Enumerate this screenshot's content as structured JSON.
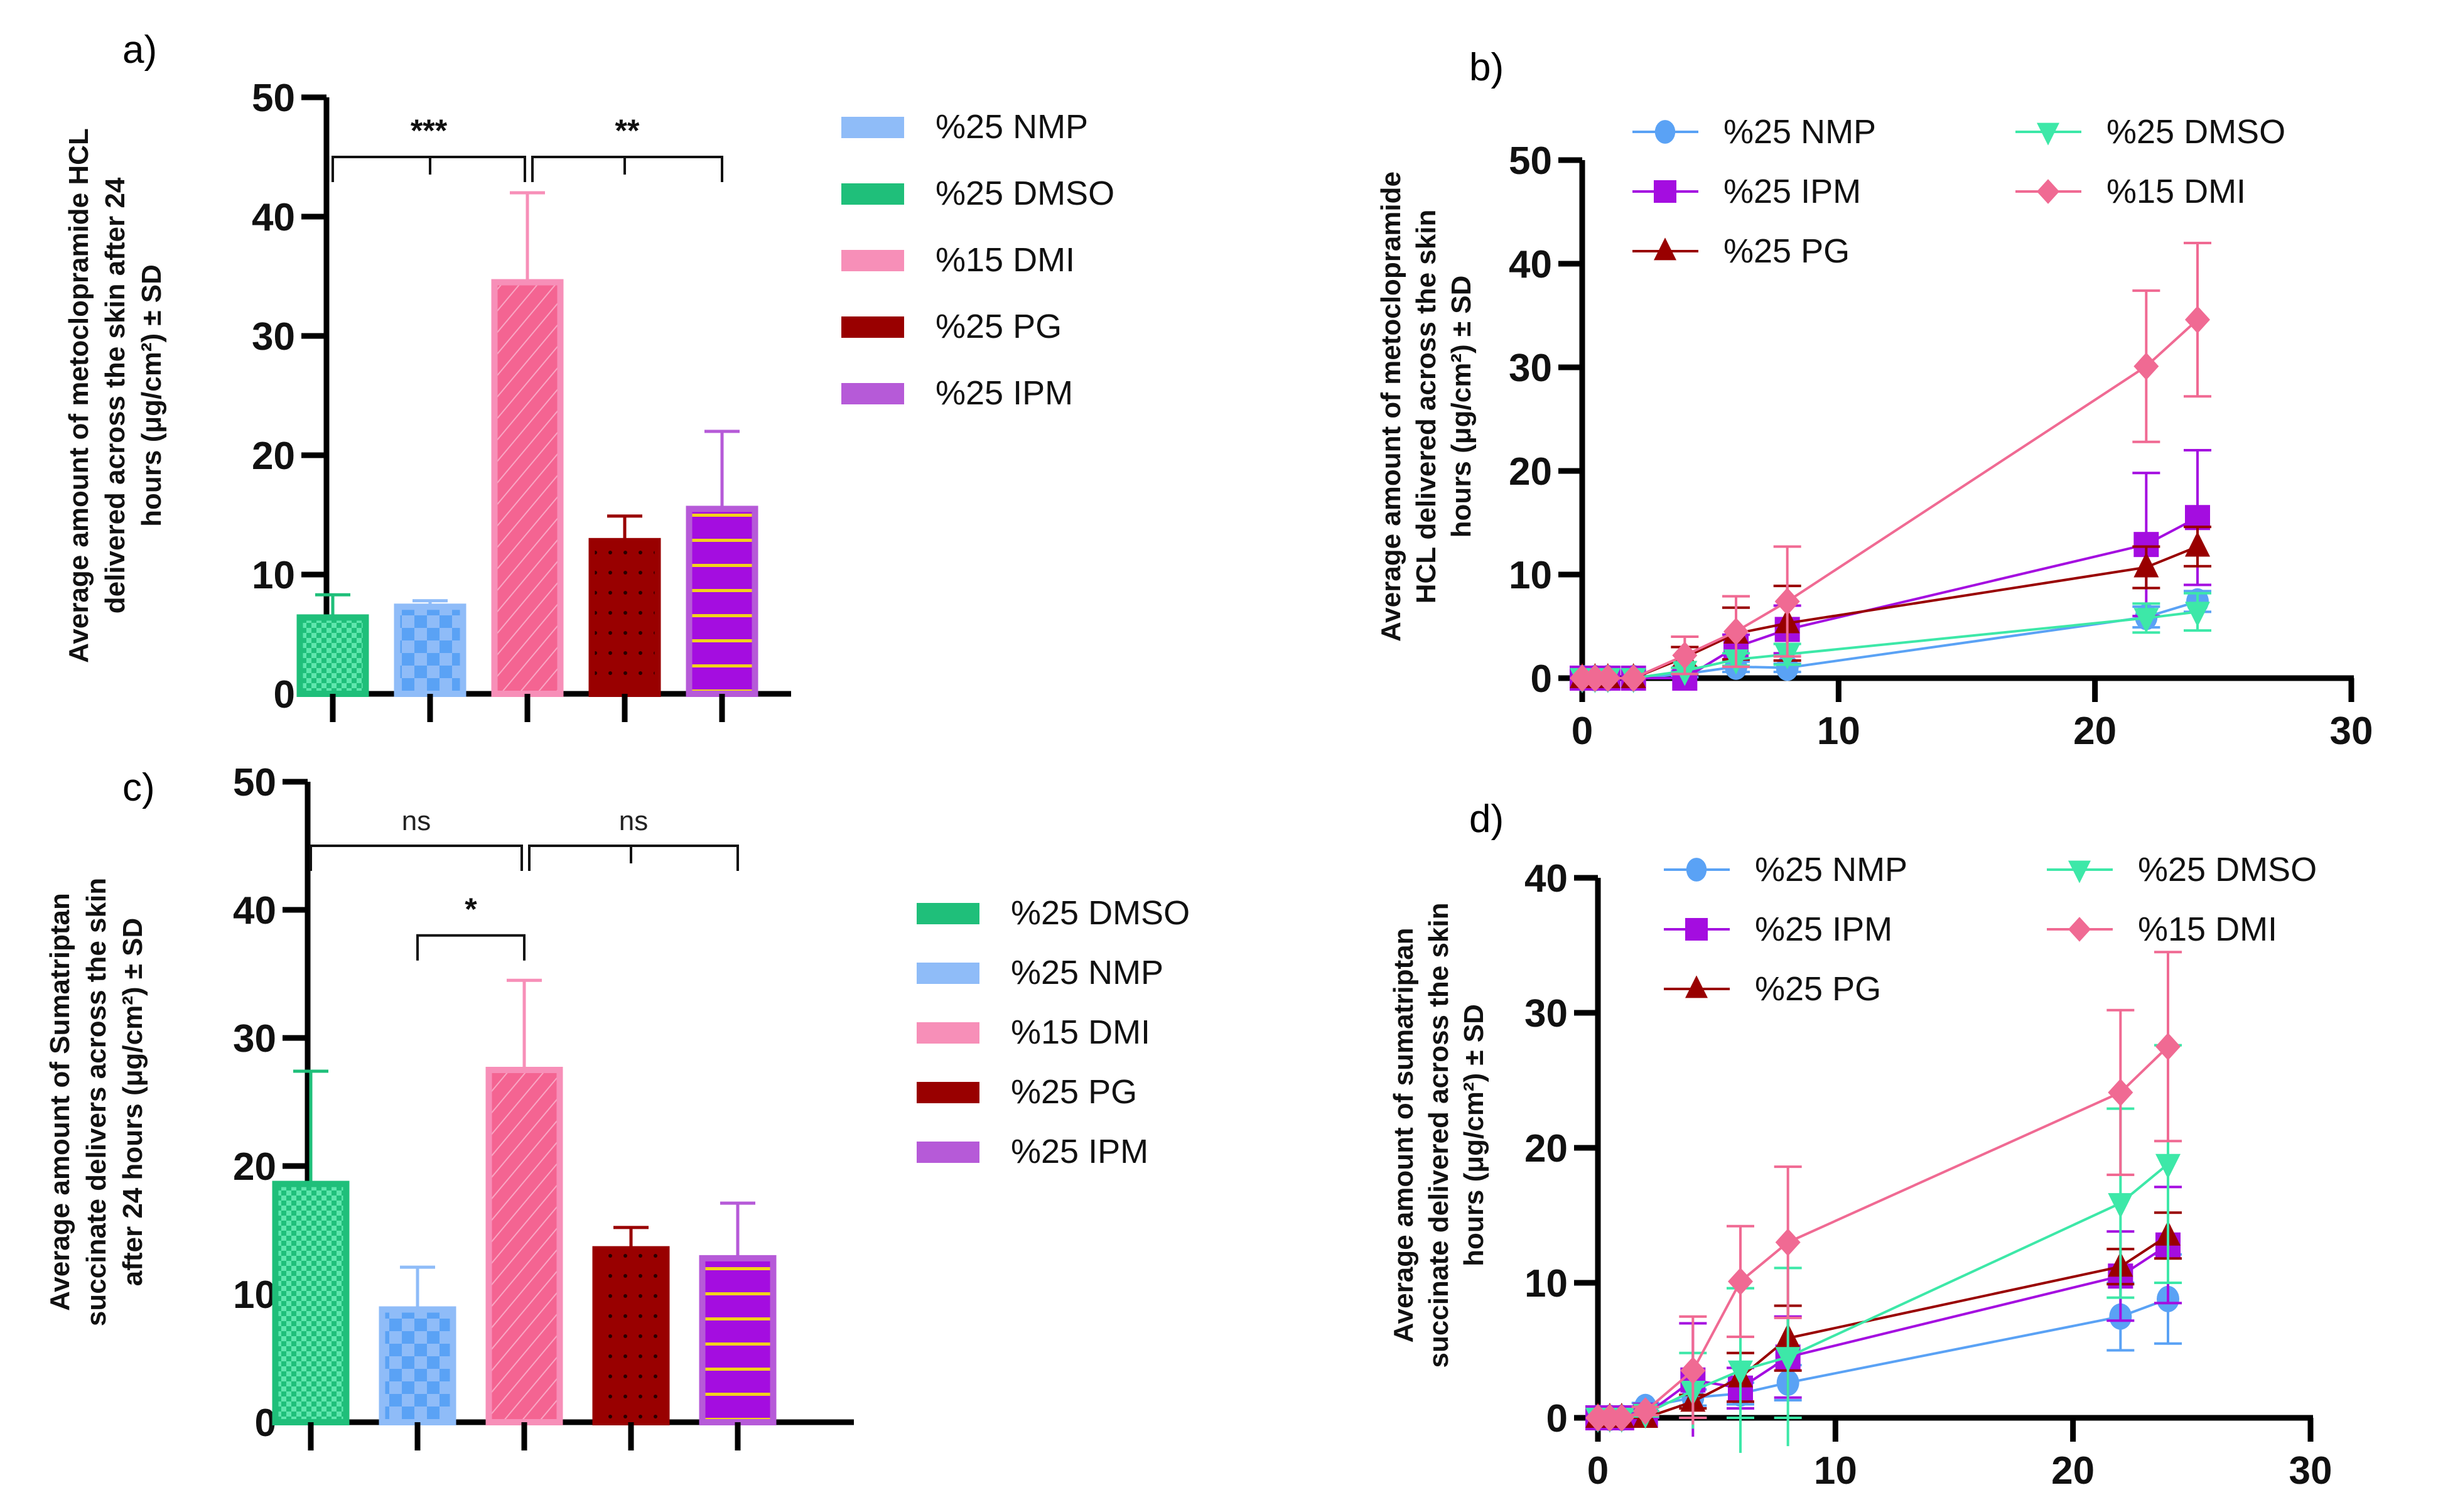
{
  "colors": {
    "NMP": "#5aa2f5",
    "DMSO": "#3de8a8",
    "DMSO_bar": "#1fbf7a",
    "DMI": "#f06a93",
    "DMI_bar": "#f78fb8",
    "PG": "#990000",
    "IPM": "#a40de0",
    "IPM_bar": "#b65ad8",
    "NMP_bar": "#8fbcf8"
  },
  "chart_data": [
    {
      "id": "a",
      "panel_label": "a)",
      "type": "bar",
      "title": "",
      "ylabel_lines": [
        "Average amount of metoclopramide HCL",
        "delivered across the skin after 24",
        "hours (μg/cm²) ± SD"
      ],
      "xlabel": "",
      "ylim": [
        0,
        50
      ],
      "yticks": [
        0,
        10,
        20,
        30,
        40,
        50
      ],
      "categories": [
        "%25 DMSO",
        "%25 NMP",
        "%15 DMI",
        "%25 PG",
        "%25 IPM"
      ],
      "values": [
        6.4,
        7.3,
        34.5,
        12.8,
        15.5
      ],
      "errors": [
        1.9,
        0.5,
        7.5,
        2.1,
        6.5
      ],
      "series_keys": [
        "DMSO",
        "NMP",
        "DMI",
        "PG",
        "IPM"
      ],
      "legend": [
        "%25 NMP",
        "%25 DMSO",
        "%15 DMI",
        "%25 PG",
        "%25 IPM"
      ],
      "legend_keys": [
        "NMP",
        "DMSO",
        "DMI",
        "PG",
        "IPM"
      ],
      "legend_position": "right",
      "significance": [
        {
          "label": "***",
          "from": 0,
          "to": 2,
          "mid": 1,
          "level": 45
        },
        {
          "label": "**",
          "from": 2,
          "to": 4,
          "mid": 3,
          "level": 45
        }
      ]
    },
    {
      "id": "b",
      "panel_label": "b)",
      "type": "line",
      "title": "",
      "ylabel_lines": [
        "Average amount of metoclopramide",
        "HCL delivered across the skin",
        "hours (μg/cm²) ± SD"
      ],
      "xlabel": "",
      "xlim": [
        0,
        30
      ],
      "ylim": [
        0,
        50
      ],
      "xticks": [
        0,
        10,
        20,
        30
      ],
      "yticks": [
        0,
        10,
        20,
        30,
        40,
        50
      ],
      "x": [
        0,
        0.5,
        1,
        2,
        4,
        6,
        8,
        22,
        24
      ],
      "series": [
        {
          "name": "%25 NMP",
          "key": "NMP",
          "marker": "circle",
          "values": [
            0,
            0,
            0,
            0,
            0.4,
            1.1,
            1.0,
            5.9,
            7.4
          ],
          "errors": [
            0,
            0,
            0,
            0,
            0.3,
            0.5,
            0.4,
            1.0,
            1.0
          ]
        },
        {
          "name": "%25 IPM",
          "key": "IPM",
          "marker": "square",
          "values": [
            0,
            0,
            0,
            0,
            0,
            3.0,
            4.7,
            12.9,
            15.5
          ],
          "errors": [
            0,
            0,
            0,
            0,
            0,
            1.2,
            2.3,
            6.9,
            6.5
          ]
        },
        {
          "name": "%25 PG",
          "key": "PG",
          "marker": "triangle-up",
          "values": [
            0,
            0,
            0,
            0,
            2.0,
            4.3,
            5.3,
            10.7,
            12.7
          ],
          "errors": [
            0,
            0,
            0,
            0,
            1.0,
            2.5,
            3.6,
            2.0,
            1.9
          ]
        },
        {
          "name": "%25 DMSO",
          "key": "DMSO",
          "marker": "triangle-down",
          "values": [
            0,
            0,
            0,
            0,
            0.7,
            1.8,
            2.3,
            5.8,
            6.4
          ],
          "errors": [
            0,
            0,
            0,
            0,
            0.3,
            0.6,
            1.0,
            1.4,
            1.8
          ]
        },
        {
          "name": "%15 DMI",
          "key": "DMI",
          "marker": "diamond",
          "values": [
            0,
            0,
            0,
            0,
            2.2,
            4.5,
            7.4,
            30.1,
            34.6
          ],
          "errors": [
            0,
            0,
            0,
            0,
            1.8,
            3.4,
            5.3,
            7.3,
            7.4
          ]
        }
      ],
      "legend_position": "top"
    },
    {
      "id": "c",
      "panel_label": "c)",
      "type": "bar",
      "title": "",
      "ylabel_lines": [
        "Average amount of Sumatriptan",
        "succinate  delivers across the skin",
        "after 24 hours (μg/cm²) ± SD"
      ],
      "xlabel": "",
      "ylim": [
        0,
        50
      ],
      "yticks": [
        0,
        10,
        20,
        30,
        40,
        50
      ],
      "categories": [
        "%25 DMSO",
        "%25 NMP",
        "%15 DMI",
        "%25 PG",
        "%25 IPM"
      ],
      "values": [
        18.6,
        8.8,
        27.5,
        13.5,
        12.8
      ],
      "errors": [
        8.8,
        3.3,
        7.0,
        1.7,
        4.3
      ],
      "series_keys": [
        "DMSO",
        "NMP",
        "DMI",
        "PG",
        "IPM"
      ],
      "legend": [
        "%25 DMSO",
        "%25 NMP",
        "%15 DMI",
        "%25 PG",
        "%25 IPM"
      ],
      "legend_keys": [
        "DMSO",
        "NMP",
        "DMI",
        "PG",
        "IPM"
      ],
      "legend_position": "right",
      "significance": [
        {
          "label": "ns",
          "from": 0,
          "to": 2,
          "mid": null,
          "level": 45
        },
        {
          "label": "ns",
          "from": 2,
          "to": 4,
          "mid": 3,
          "level": 45
        },
        {
          "label": "*",
          "from": 1,
          "to": 2,
          "mid": null,
          "level": 38
        }
      ]
    },
    {
      "id": "d",
      "panel_label": "d)",
      "type": "line",
      "title": "",
      "ylabel_lines": [
        "Average amount of sumatriptan",
        "succinate delivered across the skin",
        "hours (μg/cm²) ± SD"
      ],
      "xlabel": "",
      "xlim": [
        0,
        30
      ],
      "ylim": [
        0,
        40
      ],
      "xticks": [
        0,
        10,
        20,
        30
      ],
      "yticks": [
        0,
        10,
        20,
        30,
        40
      ],
      "x": [
        0,
        0.5,
        1,
        2,
        4,
        6,
        8,
        22,
        24
      ],
      "series": [
        {
          "name": "%25 NMP",
          "key": "NMP",
          "marker": "circle",
          "values": [
            0,
            0,
            0,
            0.8,
            1.5,
            1.8,
            2.6,
            7.5,
            8.8
          ],
          "errors": [
            0,
            0,
            0,
            0.3,
            0.6,
            0.8,
            1.3,
            2.5,
            3.3
          ]
        },
        {
          "name": "%25 IPM",
          "key": "IPM",
          "marker": "square",
          "values": [
            0,
            0,
            0,
            0.2,
            2.8,
            2.2,
            4.5,
            10.5,
            12.8
          ],
          "errors": [
            0,
            0,
            0,
            0.2,
            4.2,
            1.5,
            3.0,
            3.3,
            4.3
          ]
        },
        {
          "name": "%25 PG",
          "key": "PG",
          "marker": "triangle-up",
          "values": [
            0,
            0,
            0,
            0,
            1.2,
            3.0,
            5.9,
            11.2,
            13.5
          ],
          "errors": [
            0,
            0,
            0,
            0,
            0.5,
            1.8,
            2.4,
            1.3,
            1.7
          ]
        },
        {
          "name": "%25 DMSO",
          "key": "DMSO",
          "marker": "triangle-down",
          "values": [
            0,
            0,
            0,
            0.3,
            2.0,
            3.5,
            4.5,
            15.9,
            18.8
          ],
          "errors": [
            0,
            0,
            0,
            0.2,
            2.8,
            6.1,
            6.6,
            7.0,
            8.8
          ]
        },
        {
          "name": "%15 DMI",
          "key": "DMI",
          "marker": "diamond",
          "values": [
            0,
            0,
            0,
            0.5,
            3.5,
            10.1,
            13.0,
            24.1,
            27.5
          ],
          "errors": [
            0,
            0,
            0,
            0.3,
            4.0,
            4.1,
            5.6,
            6.1,
            7.0
          ]
        }
      ],
      "legend_position": "top"
    }
  ]
}
